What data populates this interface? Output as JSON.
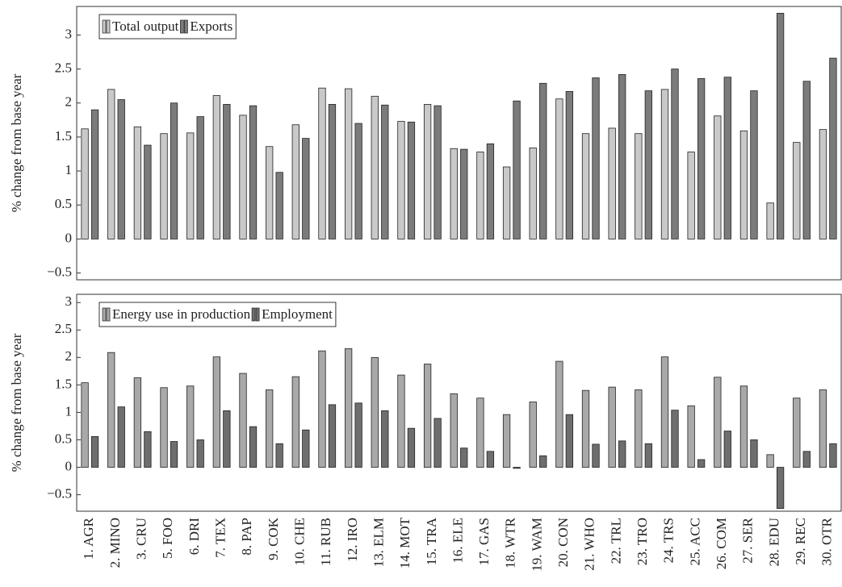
{
  "chart_data": [
    {
      "type": "bar",
      "y_label": "% change from base year",
      "ylim": [
        -0.6,
        3.42
      ],
      "yticks": [
        {
          "value": -0.5,
          "label": "−0.5"
        },
        0,
        0.5,
        1,
        1.5,
        2,
        2.5,
        3
      ],
      "legend": "upper left",
      "series": [
        {
          "name": "Total output",
          "color": "#c9c9c9",
          "values": [
            1.62,
            2.2,
            1.65,
            1.55,
            1.56,
            2.11,
            1.82,
            1.36,
            1.68,
            2.22,
            2.21,
            2.1,
            1.73,
            1.98,
            1.33,
            1.28,
            1.06,
            1.34,
            2.06,
            1.55,
            1.63,
            1.55,
            2.2,
            1.28,
            1.81,
            1.59,
            0.53,
            1.42,
            1.61
          ]
        },
        {
          "name": "Exports",
          "color": "#7b7b7b",
          "values": [
            1.9,
            2.05,
            1.38,
            2.0,
            1.8,
            1.98,
            1.96,
            0.98,
            1.48,
            1.98,
            1.7,
            1.97,
            1.72,
            1.96,
            1.32,
            1.4,
            2.03,
            2.29,
            2.17,
            2.37,
            2.42,
            2.18,
            2.5,
            2.36,
            2.38,
            2.18,
            3.32,
            2.32,
            2.66
          ]
        }
      ]
    },
    {
      "type": "bar",
      "y_label": "% change from base year",
      "ylim": [
        -0.8,
        3.15
      ],
      "yticks": [
        {
          "value": -0.5,
          "label": "−0.5"
        },
        0,
        0.5,
        1,
        1.5,
        2,
        2.5,
        3
      ],
      "legend": "upper left",
      "categories": [
        "1. AGR",
        "2. MINO",
        "3. CRU",
        "5. FOO",
        "6. DRI",
        "7. TEX",
        "8. PAP",
        "9. COK",
        "10. CHE",
        "11. RUB",
        "12. IRO",
        "13. ELM",
        "14. MOT",
        "15. TRA",
        "16. ELE",
        "17. GAS",
        "18. WTR",
        "19. WAM",
        "20. CON",
        "21. WHO",
        "22. TRL",
        "23. TRO",
        "24. TRS",
        "25. ACC",
        "26. COM",
        "27. SER",
        "28. EDU",
        "29. REC",
        "30. OTR"
      ],
      "series": [
        {
          "name": "Energy use in production",
          "color": "#a9a9a9",
          "values": [
            1.54,
            2.09,
            1.63,
            1.45,
            1.48,
            2.01,
            1.71,
            1.41,
            1.65,
            2.12,
            2.16,
            2.0,
            1.68,
            1.88,
            1.34,
            1.26,
            0.96,
            1.19,
            1.93,
            1.4,
            1.46,
            1.41,
            2.01,
            1.12,
            1.64,
            1.48,
            0.23,
            1.26,
            1.41
          ]
        },
        {
          "name": "Employment",
          "color": "#6e6e6e",
          "values": [
            0.56,
            1.1,
            0.65,
            0.47,
            0.5,
            1.03,
            0.74,
            0.43,
            0.68,
            1.14,
            1.17,
            1.03,
            0.71,
            0.89,
            0.35,
            0.29,
            -0.02,
            0.21,
            0.96,
            0.42,
            0.48,
            0.43,
            1.04,
            0.14,
            0.66,
            0.5,
            -0.75,
            0.29,
            0.43
          ]
        }
      ]
    }
  ]
}
